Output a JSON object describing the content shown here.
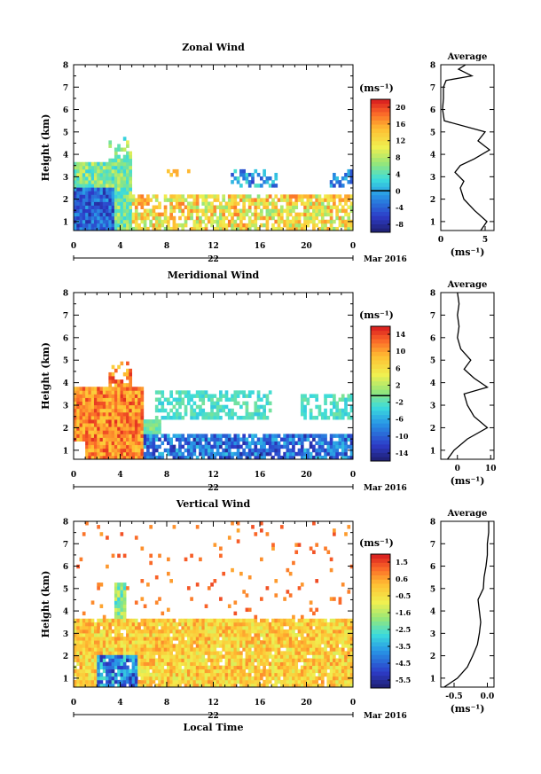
{
  "chart_data": [
    {
      "type": "heatmap",
      "title": "Zonal Wind",
      "xlabel": "",
      "ylabel": "Height (km)",
      "xticks": [
        "0",
        "4",
        "8",
        "12",
        "16",
        "20",
        "0"
      ],
      "yticks": [
        "1",
        "2",
        "3",
        "4",
        "5",
        "6",
        "7",
        "8"
      ],
      "ylim": [
        0.6,
        8.0
      ],
      "xlim_hours": [
        0,
        24
      ],
      "date_day": "22",
      "date_month": "Mar 2016",
      "colorbar": {
        "unit": "(ms⁻¹)",
        "ticks": [
          "20",
          "16",
          "12",
          "8",
          "4",
          "0",
          "-4",
          "-8"
        ],
        "range": [
          -10,
          22
        ],
        "zero_line": 0
      },
      "average_profile": {
        "title": "Average",
        "xlabel": "(ms⁻¹)",
        "xticks": [
          "0",
          "5"
        ],
        "xlim": [
          0,
          6
        ],
        "height": [
          0.6,
          1.0,
          1.5,
          2.0,
          2.5,
          2.8,
          3.2,
          3.5,
          3.8,
          4.2,
          4.6,
          5.0,
          5.5,
          6.0,
          6.5,
          7.0,
          7.3,
          7.5,
          7.8,
          8.0
        ],
        "value": [
          4.5,
          5.2,
          3.8,
          2.6,
          2.2,
          2.6,
          1.6,
          2.2,
          3.8,
          5.5,
          4.2,
          5.0,
          0.4,
          0.2,
          0.3,
          0.3,
          0.6,
          3.5,
          2.0,
          2.8
        ]
      }
    },
    {
      "type": "heatmap",
      "title": "Meridional Wind",
      "xlabel": "",
      "ylabel": "Height (km)",
      "xticks": [
        "0",
        "4",
        "8",
        "12",
        "16",
        "20",
        "0"
      ],
      "yticks": [
        "1",
        "2",
        "3",
        "4",
        "5",
        "6",
        "7",
        "8"
      ],
      "ylim": [
        0.6,
        8.0
      ],
      "xlim_hours": [
        0,
        24
      ],
      "date_day": "22",
      "date_month": "Mar 2016",
      "colorbar": {
        "unit": "(ms⁻¹)",
        "ticks": [
          "14",
          "10",
          "6",
          "2",
          "-2",
          "-6",
          "-10",
          "-14"
        ],
        "range": [
          -16,
          17
        ],
        "zero_line": 0
      },
      "average_profile": {
        "title": "Average",
        "xlabel": "(ms⁻¹)",
        "xticks": [
          "0",
          "10"
        ],
        "xlim": [
          -5,
          11
        ],
        "height": [
          0.6,
          1.0,
          1.5,
          2.0,
          2.5,
          3.0,
          3.5,
          3.8,
          4.2,
          4.6,
          5.0,
          5.5,
          6.0,
          6.5,
          7.0,
          7.5,
          8.0
        ],
        "value": [
          -3.0,
          -1.0,
          3.0,
          9.0,
          5.0,
          3.0,
          2.0,
          9.0,
          5.0,
          2.0,
          4.0,
          1.0,
          0.0,
          0.5,
          0.0,
          0.5,
          0.0
        ]
      }
    },
    {
      "type": "heatmap",
      "title": "Vertical Wind",
      "xlabel": "Local Time",
      "ylabel": "Height (km)",
      "xticks": [
        "0",
        "4",
        "8",
        "12",
        "16",
        "20",
        "0"
      ],
      "yticks": [
        "1",
        "2",
        "3",
        "4",
        "5",
        "6",
        "7",
        "8"
      ],
      "ylim": [
        0.6,
        8.0
      ],
      "xlim_hours": [
        0,
        24
      ],
      "date_day": "22",
      "date_month": "Mar 2016",
      "colorbar": {
        "unit": "(ms⁻¹)",
        "ticks": [
          "1.5",
          "0.6",
          "-0.5",
          "-1.6",
          "-2.5",
          "-3.5",
          "-4.5",
          "-5.5"
        ],
        "range": [
          -6,
          2
        ],
        "zero_line": null
      },
      "average_profile": {
        "title": "Average",
        "xlabel": "(ms⁻¹)",
        "xticks": [
          "-0.5",
          "0.0"
        ],
        "xlim": [
          -0.7,
          0.1
        ],
        "height": [
          0.6,
          1.0,
          1.5,
          2.0,
          2.5,
          3.0,
          3.5,
          4.0,
          4.5,
          5.0,
          5.5,
          6.0,
          6.5,
          7.0,
          7.5,
          8.0
        ],
        "value": [
          -0.65,
          -0.45,
          -0.3,
          -0.22,
          -0.15,
          -0.12,
          -0.1,
          -0.12,
          -0.14,
          -0.06,
          -0.05,
          -0.02,
          0.0,
          0.0,
          0.02,
          0.02
        ]
      }
    }
  ]
}
